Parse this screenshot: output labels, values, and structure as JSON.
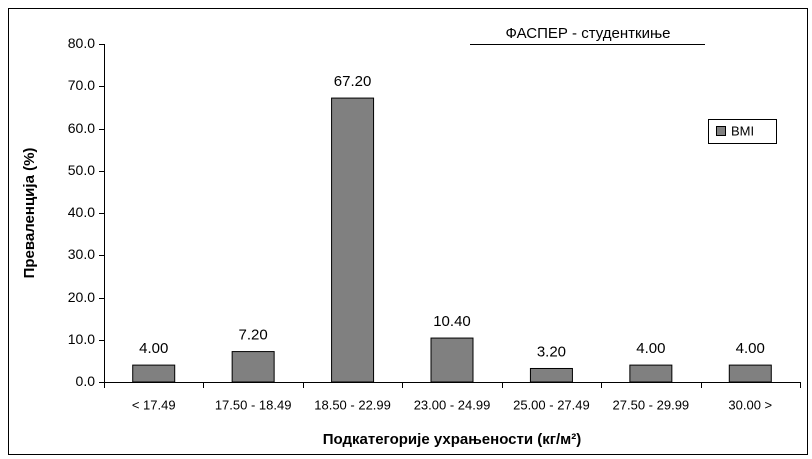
{
  "chart_data": {
    "type": "bar",
    "title": "ФАСПЕР - студенткиње",
    "xlabel": "Подкатегорије ухрањености (кг/м²)",
    "ylabel": "Преваленција (%)",
    "categories": [
      "< 17.49",
      "17.50 - 18.49",
      "18.50 - 22.99",
      "23.00 - 24.99",
      "25.00 - 27.49",
      "27.50 - 29.99",
      "30.00 >"
    ],
    "series": [
      {
        "name": "BMI",
        "color": "#808080",
        "values": [
          4,
          7.2,
          67.2,
          10.4,
          3.2,
          4,
          4
        ],
        "value_labels": [
          "4.00",
          "7.20",
          "67.20",
          "10.40",
          "3.20",
          "4.00",
          "4.00"
        ]
      }
    ],
    "ylim": [
      0,
      80
    ],
    "yticks": [
      {
        "value": 0,
        "label": "0.0"
      },
      {
        "value": 10,
        "label": "10.0"
      },
      {
        "value": 20,
        "label": "20.0"
      },
      {
        "value": 30,
        "label": "30.0"
      },
      {
        "value": 40,
        "label": "40.0"
      },
      {
        "value": 50,
        "label": "50.0"
      },
      {
        "value": 60,
        "label": "60.0"
      },
      {
        "value": 70,
        "label": "70.0"
      },
      {
        "value": 80,
        "label": "80.0"
      }
    ],
    "legend": "upper right"
  }
}
